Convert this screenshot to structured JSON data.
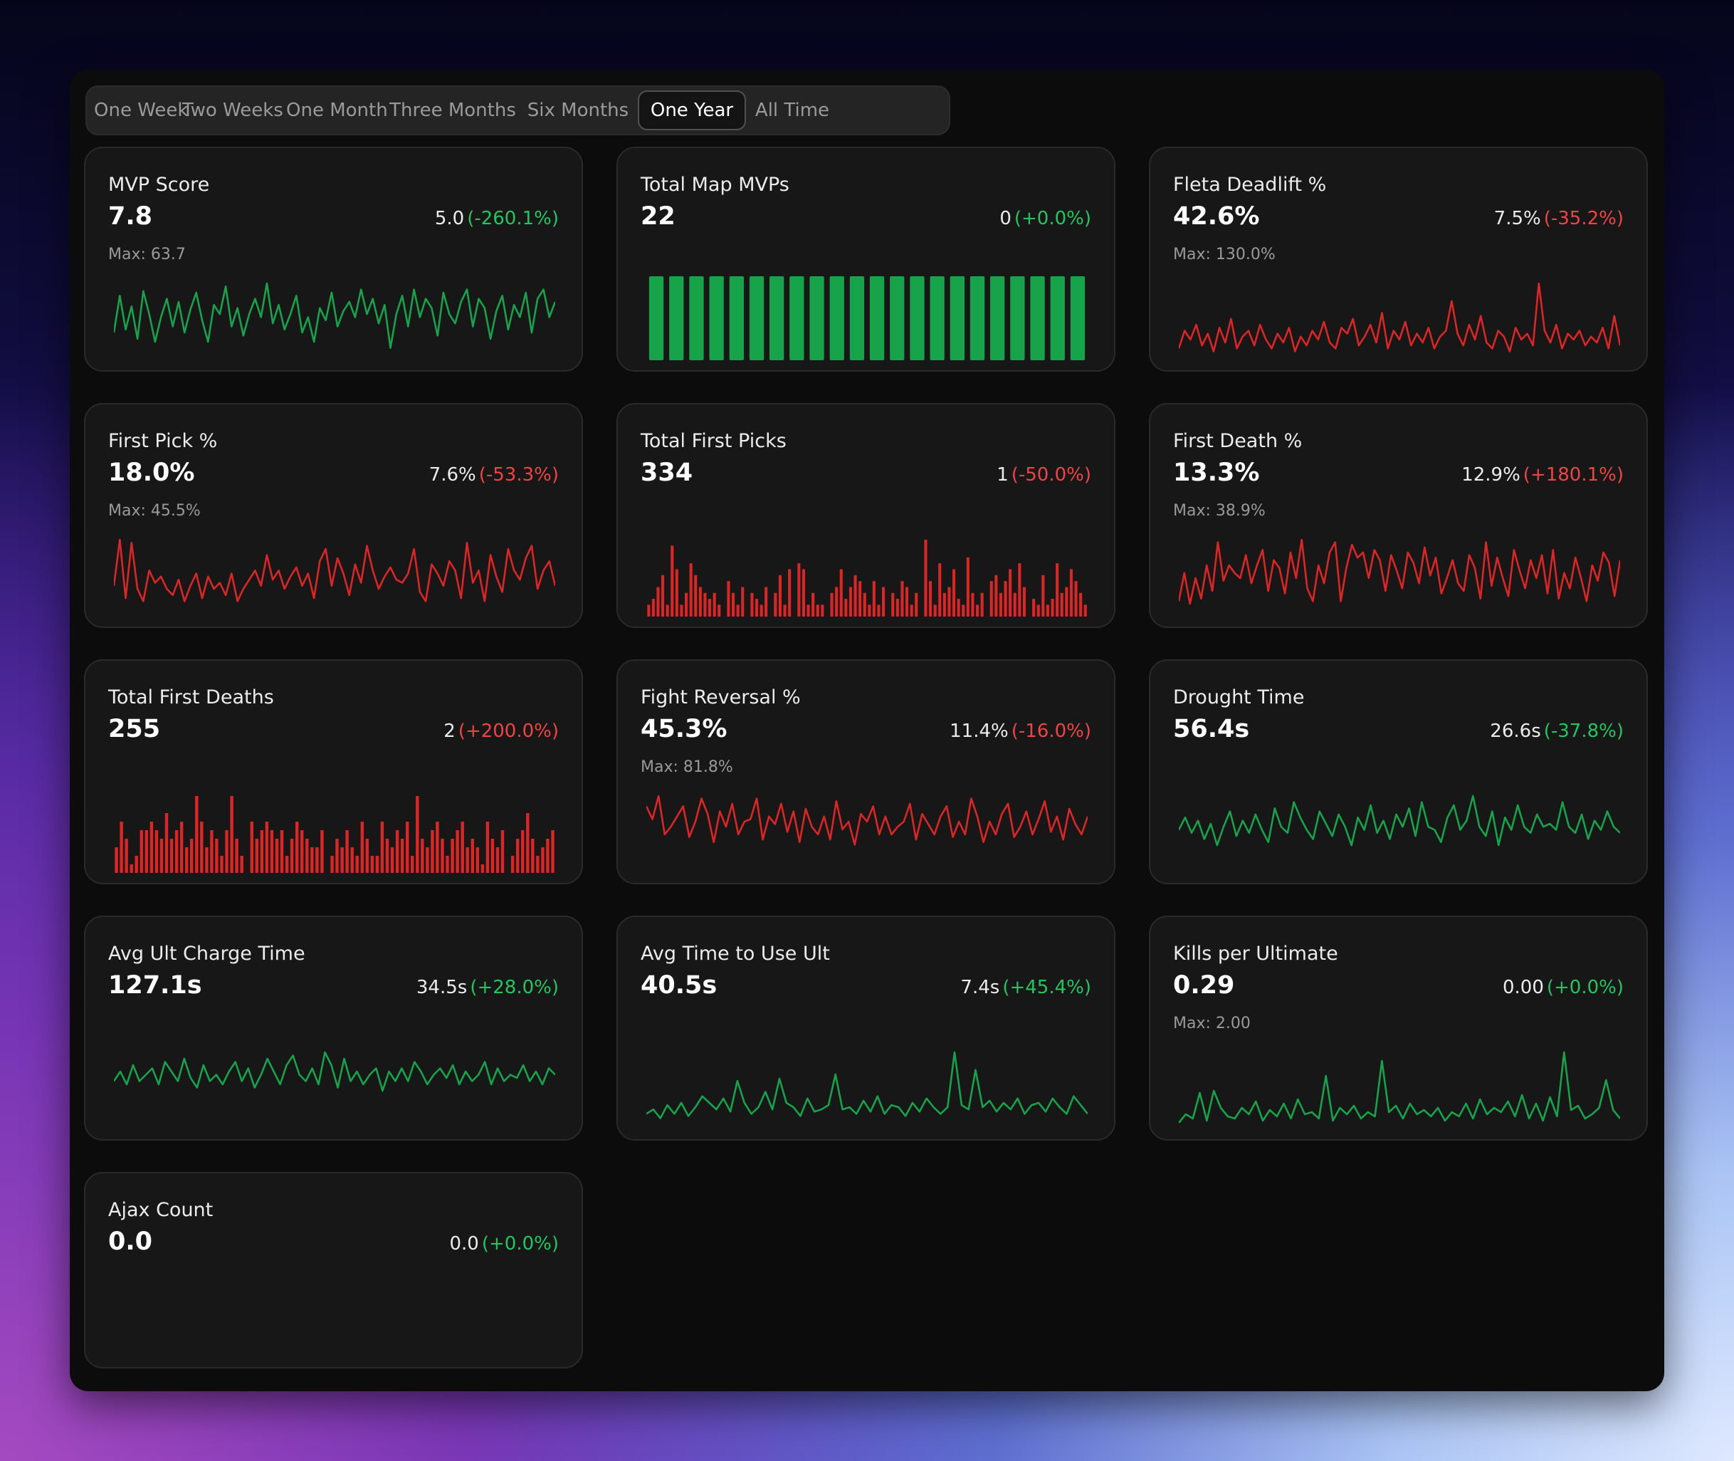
{
  "tabs": [
    {
      "label": "One Week",
      "active": false
    },
    {
      "label": "Two Weeks",
      "active": false
    },
    {
      "label": "One Month",
      "active": false
    },
    {
      "label": "Three Months",
      "active": false
    },
    {
      "label": "Six Months",
      "active": false
    },
    {
      "label": "One Year",
      "active": true
    },
    {
      "label": "All Time",
      "active": false
    }
  ],
  "colors": {
    "positive": "#22c55e",
    "negative": "#ef4444",
    "green_line": "#16a34a",
    "red_line": "#dc2626"
  },
  "cards": [
    {
      "title": "MVP Score",
      "value": "7.8",
      "recent": "5.0",
      "change": "(-260.1%)",
      "trend": "positive",
      "max": "Max: 63.7",
      "chart": "line",
      "series": [
        18,
        42,
        20,
        35,
        14,
        45,
        30,
        12,
        28,
        40,
        22,
        38,
        18,
        33,
        44,
        26,
        12,
        36,
        30,
        48,
        22,
        34,
        16,
        30,
        40,
        28,
        50,
        24,
        36,
        20,
        30,
        42,
        18,
        28,
        12,
        34,
        26,
        44,
        22,
        32,
        38,
        28,
        46,
        30,
        40,
        24,
        36,
        8,
        30,
        42,
        22,
        46,
        28,
        40,
        34,
        16,
        44,
        30,
        24,
        38,
        46,
        22,
        40,
        34,
        14,
        32,
        42,
        20,
        36,
        28,
        44,
        18,
        40,
        46,
        28,
        38
      ]
    },
    {
      "title": "Total Map MVPs",
      "value": "22",
      "recent": "0",
      "change": "(+0.0%)",
      "trend": "positive",
      "max": "",
      "chart": "bar",
      "series": [
        1,
        1,
        1,
        1,
        1,
        1,
        1,
        1,
        1,
        1,
        1,
        1,
        1,
        1,
        1,
        1,
        1,
        1,
        1,
        1,
        1,
        1
      ]
    },
    {
      "title": "Fleta Deadlift %",
      "value": "42.6%",
      "recent": "7.5%",
      "change": "(-35.2%)",
      "trend": "negative",
      "max": "Max: 130.0%",
      "chart": "line",
      "series": [
        8,
        20,
        14,
        24,
        10,
        18,
        6,
        22,
        12,
        28,
        8,
        16,
        20,
        10,
        24,
        14,
        8,
        18,
        12,
        22,
        6,
        16,
        10,
        20,
        14,
        26,
        12,
        8,
        22,
        18,
        28,
        10,
        16,
        24,
        12,
        32,
        8,
        20,
        14,
        26,
        10,
        18,
        12,
        22,
        8,
        16,
        20,
        40,
        18,
        10,
        24,
        14,
        30,
        12,
        8,
        20,
        16,
        6,
        22,
        14,
        18,
        10,
        52,
        20,
        12,
        24,
        8,
        18,
        14,
        20,
        10,
        16,
        12,
        22,
        8,
        30,
        10
      ]
    },
    {
      "title": "First Pick %",
      "value": "18.0%",
      "recent": "7.6%",
      "change": "(-53.3%)",
      "trend": "negative",
      "max": "Max: 45.5%",
      "chart": "line",
      "series": [
        20,
        50,
        12,
        48,
        18,
        10,
        30,
        22,
        26,
        18,
        14,
        24,
        10,
        20,
        28,
        12,
        26,
        18,
        22,
        14,
        28,
        10,
        18,
        24,
        30,
        20,
        40,
        24,
        30,
        18,
        26,
        32,
        20,
        28,
        12,
        36,
        44,
        20,
        38,
        28,
        14,
        34,
        22,
        46,
        30,
        18,
        26,
        32,
        24,
        22,
        28,
        44,
        16,
        10,
        34,
        28,
        20,
        36,
        30,
        12,
        48,
        22,
        30,
        10,
        40,
        26,
        16,
        44,
        30,
        24,
        38,
        46,
        18,
        30,
        36,
        20
      ]
    },
    {
      "title": "Total First Picks",
      "value": "334",
      "recent": "1",
      "change": "(-50.0%)",
      "trend": "negative",
      "max": "",
      "chart": "bar",
      "series": [
        2,
        3,
        5,
        7,
        2,
        12,
        8,
        2,
        4,
        9,
        7,
        5,
        4,
        3,
        4,
        2,
        0,
        6,
        4,
        2,
        5,
        0,
        4,
        3,
        2,
        5,
        0,
        4,
        7,
        2,
        8,
        0,
        9,
        8,
        2,
        4,
        2,
        2,
        0,
        4,
        5,
        8,
        3,
        5,
        7,
        6,
        4,
        2,
        6,
        2,
        5,
        0,
        4,
        3,
        6,
        5,
        2,
        4,
        0,
        13,
        6,
        2,
        9,
        4,
        5,
        8,
        3,
        2,
        10,
        4,
        2,
        4,
        0,
        6,
        7,
        4,
        6,
        8,
        4,
        9,
        5,
        0,
        3,
        2,
        7,
        2,
        3,
        9,
        4,
        5,
        8,
        6,
        4,
        2
      ]
    },
    {
      "title": "First Death %",
      "value": "13.3%",
      "recent": "12.9%",
      "change": "(+180.1%)",
      "trend": "negative",
      "max": "Max: 38.9%",
      "chart": "line",
      "series": [
        12,
        34,
        10,
        30,
        14,
        40,
        20,
        58,
        28,
        40,
        34,
        30,
        48,
        26,
        40,
        52,
        20,
        44,
        38,
        18,
        50,
        30,
        60,
        22,
        12,
        40,
        26,
        50,
        58,
        12,
        38,
        56,
        46,
        50,
        30,
        52,
        44,
        20,
        48,
        36,
        22,
        50,
        42,
        26,
        54,
        32,
        46,
        18,
        30,
        44,
        26,
        20,
        48,
        38,
        14,
        58,
        24,
        46,
        30,
        16,
        52,
        36,
        22,
        44,
        30,
        48,
        18,
        52,
        14,
        34,
        22,
        46,
        30,
        12,
        40,
        28,
        50,
        42,
        16,
        44
      ]
    },
    {
      "title": "Total First Deaths",
      "value": "255",
      "recent": "2",
      "change": "(+200.0%)",
      "trend": "negative",
      "max": "",
      "chart": "bar",
      "series": [
        3,
        6,
        4,
        1,
        2,
        5,
        5,
        6,
        5,
        4,
        7,
        4,
        5,
        6,
        3,
        4,
        9,
        6,
        3,
        5,
        4,
        2,
        5,
        9,
        4,
        2,
        0,
        6,
        4,
        5,
        6,
        5,
        4,
        5,
        2,
        4,
        6,
        5,
        4,
        3,
        3,
        5,
        0,
        2,
        4,
        3,
        5,
        3,
        2,
        6,
        4,
        2,
        2,
        6,
        4,
        3,
        5,
        4,
        6,
        2,
        9,
        4,
        3,
        5,
        6,
        4,
        2,
        4,
        5,
        6,
        3,
        4,
        3,
        1,
        6,
        4,
        3,
        5,
        0,
        2,
        4,
        5,
        7,
        4,
        2,
        3,
        4,
        5
      ]
    },
    {
      "title": "Fight Reversal %",
      "value": "45.3%",
      "recent": "11.4%",
      "change": "(-16.0%)",
      "trend": "negative",
      "max": "Max: 81.8%",
      "chart": "line",
      "series": [
        52,
        42,
        60,
        30,
        36,
        44,
        52,
        28,
        40,
        58,
        46,
        24,
        48,
        36,
        54,
        30,
        40,
        42,
        58,
        26,
        44,
        38,
        54,
        32,
        48,
        24,
        50,
        36,
        30,
        44,
        26,
        56,
        34,
        40,
        22,
        46,
        40,
        52,
        30,
        44,
        30,
        36,
        40,
        54,
        26,
        46,
        38,
        30,
        44,
        52,
        28,
        40,
        30,
        58,
        44,
        24,
        40,
        30,
        46,
        54,
        28,
        36,
        48,
        30,
        42,
        56,
        32,
        44,
        26,
        50,
        38,
        30,
        44
      ]
    },
    {
      "title": "Drought Time",
      "value": "56.4s",
      "recent": "26.6s",
      "change": "(-37.8%)",
      "trend": "positive",
      "max": "",
      "chart": "line",
      "series": [
        28,
        36,
        26,
        34,
        22,
        32,
        18,
        30,
        40,
        24,
        34,
        26,
        38,
        28,
        20,
        42,
        30,
        26,
        46,
        36,
        28,
        22,
        40,
        32,
        24,
        38,
        30,
        18,
        36,
        28,
        44,
        26,
        34,
        22,
        38,
        30,
        42,
        24,
        46,
        30,
        28,
        20,
        36,
        44,
        28,
        34,
        50,
        30,
        24,
        40,
        18,
        36,
        28,
        44,
        30,
        26,
        38,
        30,
        32,
        28,
        46,
        30,
        26,
        38,
        22,
        34,
        28,
        40,
        30,
        26
      ]
    },
    {
      "title": "Avg Ult Charge Time",
      "value": "127.1s",
      "recent": "34.5s",
      "change": "(+28.0%)",
      "trend": "positive",
      "max": "",
      "chart": "line",
      "series": [
        30,
        36,
        28,
        40,
        30,
        34,
        38,
        28,
        42,
        36,
        30,
        44,
        32,
        26,
        40,
        30,
        34,
        28,
        36,
        42,
        30,
        38,
        26,
        34,
        44,
        36,
        28,
        40,
        46,
        34,
        30,
        38,
        28,
        48,
        40,
        26,
        44,
        30,
        36,
        28,
        34,
        38,
        24,
        36,
        30,
        38,
        30,
        42,
        36,
        28,
        34,
        38,
        32,
        40,
        28,
        36,
        30,
        34,
        42,
        28,
        38,
        30,
        34,
        32,
        40,
        30,
        36,
        28,
        38,
        34
      ]
    },
    {
      "title": "Avg Time to Use Ult",
      "value": "40.5s",
      "recent": "7.4s",
      "change": "(+45.4%)",
      "trend": "positive",
      "max": "",
      "chart": "line",
      "series": [
        14,
        18,
        10,
        22,
        14,
        24,
        12,
        20,
        30,
        24,
        18,
        28,
        16,
        44,
        24,
        14,
        20,
        34,
        18,
        46,
        24,
        20,
        12,
        28,
        16,
        18,
        22,
        50,
        18,
        20,
        14,
        26,
        16,
        30,
        14,
        22,
        20,
        12,
        24,
        16,
        28,
        20,
        14,
        20,
        70,
        22,
        18,
        54,
        20,
        26,
        16,
        24,
        18,
        28,
        14,
        22,
        24,
        16,
        28,
        20,
        14,
        30,
        22,
        14
      ]
    },
    {
      "title": "Kills per Ultimate",
      "value": "0.29",
      "recent": "0.00",
      "change": "(+0.0%)",
      "trend": "positive",
      "max": "Max: 2.00",
      "chart": "line",
      "series": [
        6,
        14,
        10,
        34,
        8,
        36,
        20,
        12,
        10,
        20,
        14,
        26,
        8,
        18,
        12,
        24,
        10,
        28,
        14,
        16,
        10,
        50,
        8,
        20,
        14,
        22,
        10,
        16,
        12,
        64,
        16,
        22,
        10,
        24,
        14,
        18,
        12,
        20,
        8,
        16,
        12,
        24,
        10,
        28,
        14,
        20,
        16,
        26,
        12,
        32,
        10,
        24,
        8,
        30,
        12,
        72,
        18,
        22,
        10,
        14,
        20,
        46,
        18,
        10
      ]
    },
    {
      "title": "Ajax Count",
      "value": "0.0",
      "recent": "0.0",
      "change": "(+0.0%)",
      "trend": "positive",
      "max": "",
      "chart": "none",
      "series": []
    }
  ]
}
